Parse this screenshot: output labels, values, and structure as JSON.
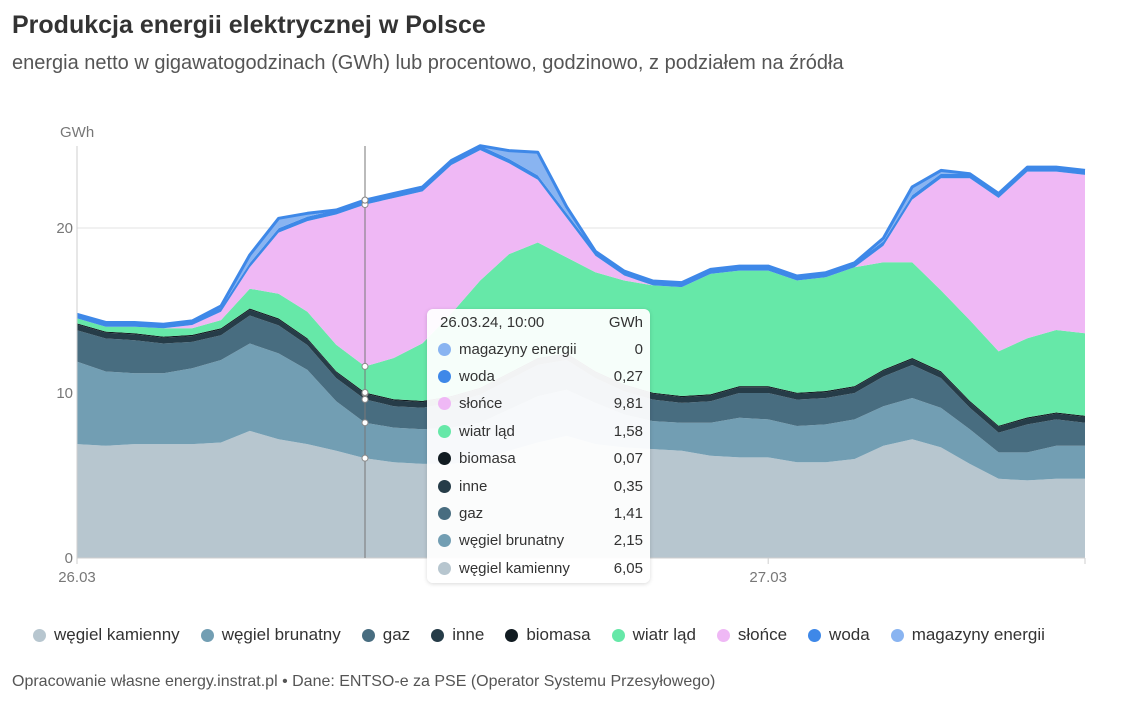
{
  "title": "Produkcja energii elektrycznej w Polsce",
  "subtitle": "energia netto w gigawatogodzinach (GWh) lub procentowo, godzinowo, z podziałem na źródła",
  "footer": "Opracowanie własne energy.instrat.pl • Dane: ENTSO-e za PSE (Operator Systemu Przesyłowego)",
  "chart_data": {
    "type": "area",
    "stacked": true,
    "ylabel": "GWh",
    "ylim": [
      0,
      25
    ],
    "yticks": [
      0,
      10,
      20
    ],
    "grid": true,
    "x": [
      "26.03 00:00",
      "26.03 01:00",
      "26.03 02:00",
      "26.03 03:00",
      "26.03 04:00",
      "26.03 05:00",
      "26.03 06:00",
      "26.03 07:00",
      "26.03 08:00",
      "26.03 09:00",
      "26.03 10:00",
      "26.03 11:00",
      "26.03 12:00",
      "26.03 13:00",
      "26.03 14:00",
      "26.03 15:00",
      "26.03 16:00",
      "26.03 17:00",
      "26.03 18:00",
      "26.03 19:00",
      "26.03 20:00",
      "26.03 21:00",
      "26.03 22:00",
      "26.03 23:00",
      "27.03 00:00",
      "27.03 01:00",
      "27.03 02:00",
      "27.03 03:00",
      "27.03 04:00",
      "27.03 05:00",
      "27.03 06:00",
      "27.03 07:00",
      "27.03 08:00",
      "27.03 09:00",
      "27.03 10:00",
      "27.03 11:00"
    ],
    "xtick_labels": [
      {
        "x": "26.03 00:00",
        "label": "26.03"
      },
      {
        "x": "27.03 00:00",
        "label": "27.03"
      }
    ],
    "series": [
      {
        "name": "węgiel kamienny",
        "color": "#b7c6cf",
        "values": [
          6.9,
          6.8,
          6.9,
          6.9,
          6.9,
          7.0,
          7.7,
          7.2,
          6.9,
          6.5,
          6.05,
          5.8,
          5.7,
          5.7,
          5.9,
          6.5,
          7.0,
          7.4,
          6.9,
          6.7,
          6.6,
          6.5,
          6.2,
          6.1,
          6.1,
          5.8,
          5.8,
          6.0,
          6.8,
          7.2,
          6.7,
          5.7,
          4.8,
          4.7,
          4.8,
          4.8
        ]
      },
      {
        "name": "węgiel brunatny",
        "color": "#729eb3",
        "values": [
          5.0,
          4.5,
          4.3,
          4.3,
          4.6,
          5.0,
          5.3,
          5.2,
          4.5,
          3.0,
          2.15,
          2.1,
          2.1,
          2.2,
          2.3,
          2.5,
          2.8,
          2.8,
          2.5,
          2.0,
          1.7,
          1.7,
          2.0,
          2.4,
          2.3,
          2.2,
          2.3,
          2.4,
          2.4,
          2.5,
          2.4,
          2.1,
          1.6,
          1.7,
          2.0,
          2.0
        ]
      },
      {
        "name": "gaz",
        "color": "#486d80",
        "values": [
          1.9,
          2.0,
          2.0,
          1.8,
          1.6,
          1.5,
          1.7,
          1.7,
          1.5,
          1.4,
          1.41,
          1.3,
          1.3,
          1.5,
          1.7,
          1.8,
          1.9,
          1.8,
          1.5,
          1.4,
          1.3,
          1.2,
          1.3,
          1.5,
          1.6,
          1.6,
          1.6,
          1.6,
          1.8,
          2.0,
          1.8,
          1.3,
          1.2,
          1.7,
          1.6,
          1.4
        ]
      },
      {
        "name": "inne",
        "color": "#263c48",
        "values": [
          0.35,
          0.35,
          0.35,
          0.35,
          0.35,
          0.35,
          0.35,
          0.35,
          0.35,
          0.35,
          0.35,
          0.35,
          0.35,
          0.35,
          0.35,
          0.35,
          0.35,
          0.35,
          0.35,
          0.35,
          0.35,
          0.35,
          0.35,
          0.35,
          0.35,
          0.35,
          0.35,
          0.35,
          0.35,
          0.35,
          0.35,
          0.35,
          0.35,
          0.35,
          0.35,
          0.35
        ]
      },
      {
        "name": "biomasa",
        "color": "#111b21",
        "values": [
          0.07,
          0.07,
          0.07,
          0.07,
          0.07,
          0.07,
          0.07,
          0.07,
          0.07,
          0.07,
          0.07,
          0.07,
          0.07,
          0.07,
          0.07,
          0.07,
          0.07,
          0.07,
          0.07,
          0.07,
          0.07,
          0.07,
          0.07,
          0.07,
          0.07,
          0.07,
          0.07,
          0.07,
          0.07,
          0.07,
          0.07,
          0.07,
          0.07,
          0.07,
          0.07,
          0.07
        ]
      },
      {
        "name": "wiatr ląd",
        "color": "#66e8a8",
        "values": [
          0.3,
          0.3,
          0.4,
          0.5,
          0.4,
          0.5,
          1.2,
          1.5,
          1.6,
          1.6,
          1.58,
          2.5,
          3.5,
          5.0,
          6.5,
          7.2,
          7.0,
          5.8,
          6.0,
          6.3,
          6.5,
          6.6,
          7.3,
          7.0,
          7.0,
          6.8,
          6.9,
          7.2,
          6.5,
          5.8,
          4.9,
          4.9,
          4.5,
          4.8,
          5.0,
          5.0
        ]
      },
      {
        "name": "słońce",
        "color": "#efb8f5",
        "values": [
          0.0,
          0.0,
          0.0,
          0.0,
          0.2,
          0.5,
          1.3,
          3.7,
          5.5,
          7.9,
          9.81,
          9.7,
          9.2,
          9.0,
          7.9,
          5.5,
          3.8,
          2.4,
          1.0,
          0.3,
          0.0,
          0.0,
          0.0,
          0.0,
          0.0,
          0.0,
          0.0,
          0.0,
          1.0,
          3.8,
          6.8,
          8.6,
          9.3,
          10.1,
          9.6,
          9.6
        ]
      },
      {
        "name": "woda",
        "color": "#3e88e8",
        "values": [
          0.25,
          0.25,
          0.25,
          0.25,
          0.25,
          0.25,
          0.25,
          0.27,
          0.27,
          0.27,
          0.27,
          0.27,
          0.27,
          0.27,
          0.27,
          0.27,
          0.27,
          0.27,
          0.27,
          0.27,
          0.27,
          0.27,
          0.27,
          0.27,
          0.27,
          0.27,
          0.27,
          0.27,
          0.27,
          0.27,
          0.27,
          0.27,
          0.27,
          0.27,
          0.27,
          0.27
        ]
      },
      {
        "name": "magazyny energii",
        "color": "#89b4f1",
        "values": [
          0,
          0,
          0,
          0,
          0,
          0.1,
          0.5,
          0.6,
          0.2,
          0,
          0,
          0,
          0,
          0,
          0,
          0.5,
          1.4,
          0.4,
          0,
          0,
          0,
          0,
          0,
          0,
          0,
          0,
          0,
          0,
          0.2,
          0.5,
          0.2,
          0,
          0,
          0,
          0,
          0
        ]
      }
    ],
    "crosshair_index": 10,
    "tooltip": {
      "title": "26.03.24, 10:00",
      "unit": "GWh",
      "rows": [
        {
          "name": "magazyny energii",
          "value": "0",
          "color": "#89b4f1"
        },
        {
          "name": "woda",
          "value": "0,27",
          "color": "#3e88e8"
        },
        {
          "name": "słońce",
          "value": "9,81",
          "color": "#efb8f5"
        },
        {
          "name": "wiatr ląd",
          "value": "1,58",
          "color": "#66e8a8"
        },
        {
          "name": "biomasa",
          "value": "0,07",
          "color": "#111b21"
        },
        {
          "name": "inne",
          "value": "0,35",
          "color": "#263c48"
        },
        {
          "name": "gaz",
          "value": "1,41",
          "color": "#486d80"
        },
        {
          "name": "węgiel brunatny",
          "value": "2,15",
          "color": "#729eb3"
        },
        {
          "name": "węgiel kamienny",
          "value": "6,05",
          "color": "#b7c6cf"
        }
      ]
    }
  }
}
